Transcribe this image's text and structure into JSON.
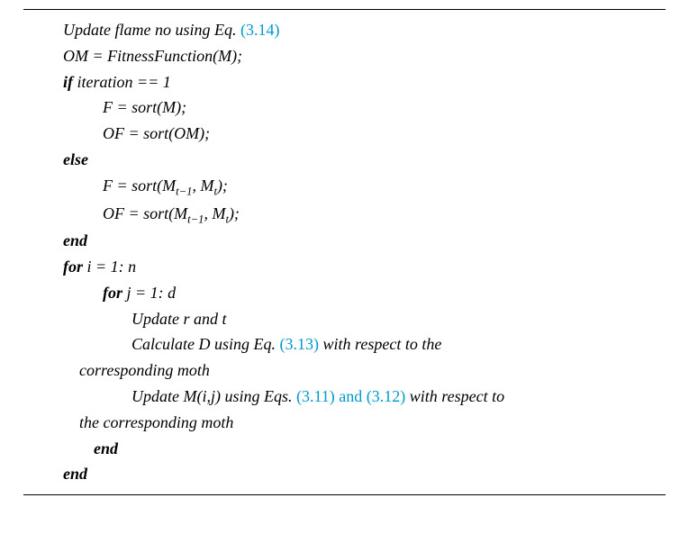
{
  "lines": {
    "l1_pre": "Update flame no using Eq. ",
    "l1_eq": "(3.14)",
    "l2": "OM = FitnessFunction(M);",
    "l3_kw": "if",
    "l3_rest": " iteration == 1",
    "l4": "F = sort(M);",
    "l5": "OF = sort(OM);",
    "l6": "else",
    "l7_pre": "F = sort(M",
    "l7_sub1": "t−1",
    "l7_mid": ", M",
    "l7_sub2": "t",
    "l7_post": ");",
    "l8_pre": "OF = sort(M",
    "l8_sub1": "t−1",
    "l8_mid": ", M",
    "l8_sub2": "t",
    "l8_post": ");",
    "l9": "end",
    "l10_kw": "for",
    "l10_rest": " i = 1: n",
    "l11_kw": "for",
    "l11_rest": " j = 1: d",
    "l12": "Update r and t",
    "l13_pre": "Calculate D using Eq. ",
    "l13_eq": "(3.13)",
    "l13_post": " with respect to the",
    "l14": "corresponding moth",
    "l15_pre": "Update M(i,j) using Eqs. ",
    "l15_eq": "(3.11) and (3.12)",
    "l15_post": " with respect to",
    "l16": "the corresponding moth",
    "l17": "end",
    "l18": "end"
  },
  "colors": {
    "text": "#000000",
    "link": "#0099cc",
    "background": "#ffffff"
  },
  "typography": {
    "font_family": "Georgia, Times New Roman, serif",
    "font_size_pt": 14,
    "line_height": 1.6
  }
}
